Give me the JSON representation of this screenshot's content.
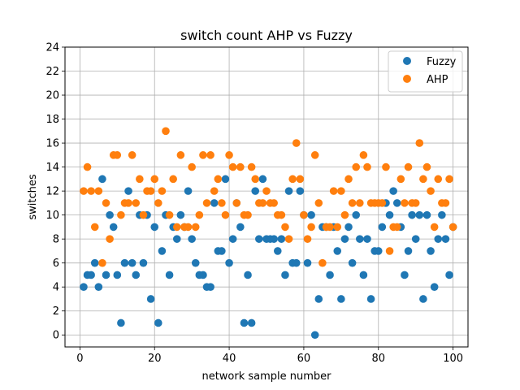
{
  "chart_data": {
    "type": "scatter",
    "title": "switch count AHP vs Fuzzy",
    "xlabel": "network sample number",
    "ylabel": "switches",
    "xlim": [
      -4,
      104
    ],
    "ylim": [
      -1,
      24
    ],
    "xticks": [
      0,
      20,
      40,
      60,
      80,
      100
    ],
    "yticks": [
      0,
      2,
      4,
      6,
      8,
      10,
      12,
      14,
      16,
      18,
      20,
      22,
      24
    ],
    "grid": true,
    "legend_position": "top-right",
    "x": [
      1,
      2,
      3,
      4,
      5,
      6,
      7,
      8,
      9,
      10,
      11,
      12,
      13,
      14,
      15,
      16,
      17,
      18,
      19,
      20,
      21,
      22,
      23,
      24,
      25,
      26,
      27,
      28,
      29,
      30,
      31,
      32,
      33,
      34,
      35,
      36,
      37,
      38,
      39,
      40,
      41,
      42,
      43,
      44,
      45,
      46,
      47,
      48,
      49,
      50,
      51,
      52,
      53,
      54,
      55,
      56,
      57,
      58,
      59,
      60,
      61,
      62,
      63,
      64,
      65,
      66,
      67,
      68,
      69,
      70,
      71,
      72,
      73,
      74,
      75,
      76,
      77,
      78,
      79,
      80,
      81,
      82,
      83,
      84,
      85,
      86,
      87,
      88,
      89,
      90,
      91,
      92,
      93,
      94,
      95,
      96,
      97,
      98,
      99,
      100
    ],
    "series": [
      {
        "name": "Fuzzy",
        "color": "#1f77b4",
        "values": [
          4,
          5,
          5,
          6,
          4,
          13,
          5,
          10,
          9,
          5,
          1,
          6,
          12,
          6,
          5,
          10,
          6,
          10,
          3,
          9,
          1,
          7,
          10,
          5,
          9,
          8,
          10,
          9,
          12,
          8,
          6,
          5,
          5,
          4,
          4,
          11,
          7,
          7,
          13,
          6,
          8,
          11,
          9,
          1,
          5,
          1,
          12,
          8,
          13,
          8,
          8,
          8,
          7,
          8,
          5,
          12,
          6,
          6,
          12,
          10,
          6,
          10,
          0,
          3,
          9,
          9,
          5,
          9,
          7,
          3,
          8,
          9,
          6,
          10,
          8,
          5,
          8,
          3,
          7,
          7,
          9,
          11,
          10,
          12,
          11,
          9,
          5,
          7,
          10,
          8,
          10,
          3,
          10,
          7,
          4,
          8,
          10,
          8,
          5,
          9
        ]
      },
      {
        "name": "AHP",
        "color": "#ff7f0e",
        "values": [
          12,
          14,
          12,
          9,
          12,
          6,
          11,
          8,
          15,
          15,
          10,
          11,
          11,
          15,
          11,
          13,
          10,
          12,
          12,
          13,
          11,
          12,
          17,
          10,
          13,
          9,
          15,
          9,
          9,
          14,
          9,
          10,
          15,
          11,
          15,
          12,
          13,
          11,
          10,
          15,
          14,
          11,
          14,
          10,
          10,
          14,
          13,
          11,
          11,
          12,
          11,
          11,
          10,
          10,
          9,
          8,
          13,
          16,
          13,
          10,
          8,
          9,
          15,
          11,
          6,
          9,
          9,
          12,
          9,
          12,
          10,
          13,
          11,
          14,
          11,
          15,
          14,
          11,
          11,
          11,
          11,
          14,
          7,
          9,
          9,
          13,
          11,
          14,
          11,
          11,
          16,
          13,
          14,
          12,
          9,
          13,
          11,
          11,
          13,
          9
        ]
      }
    ]
  }
}
